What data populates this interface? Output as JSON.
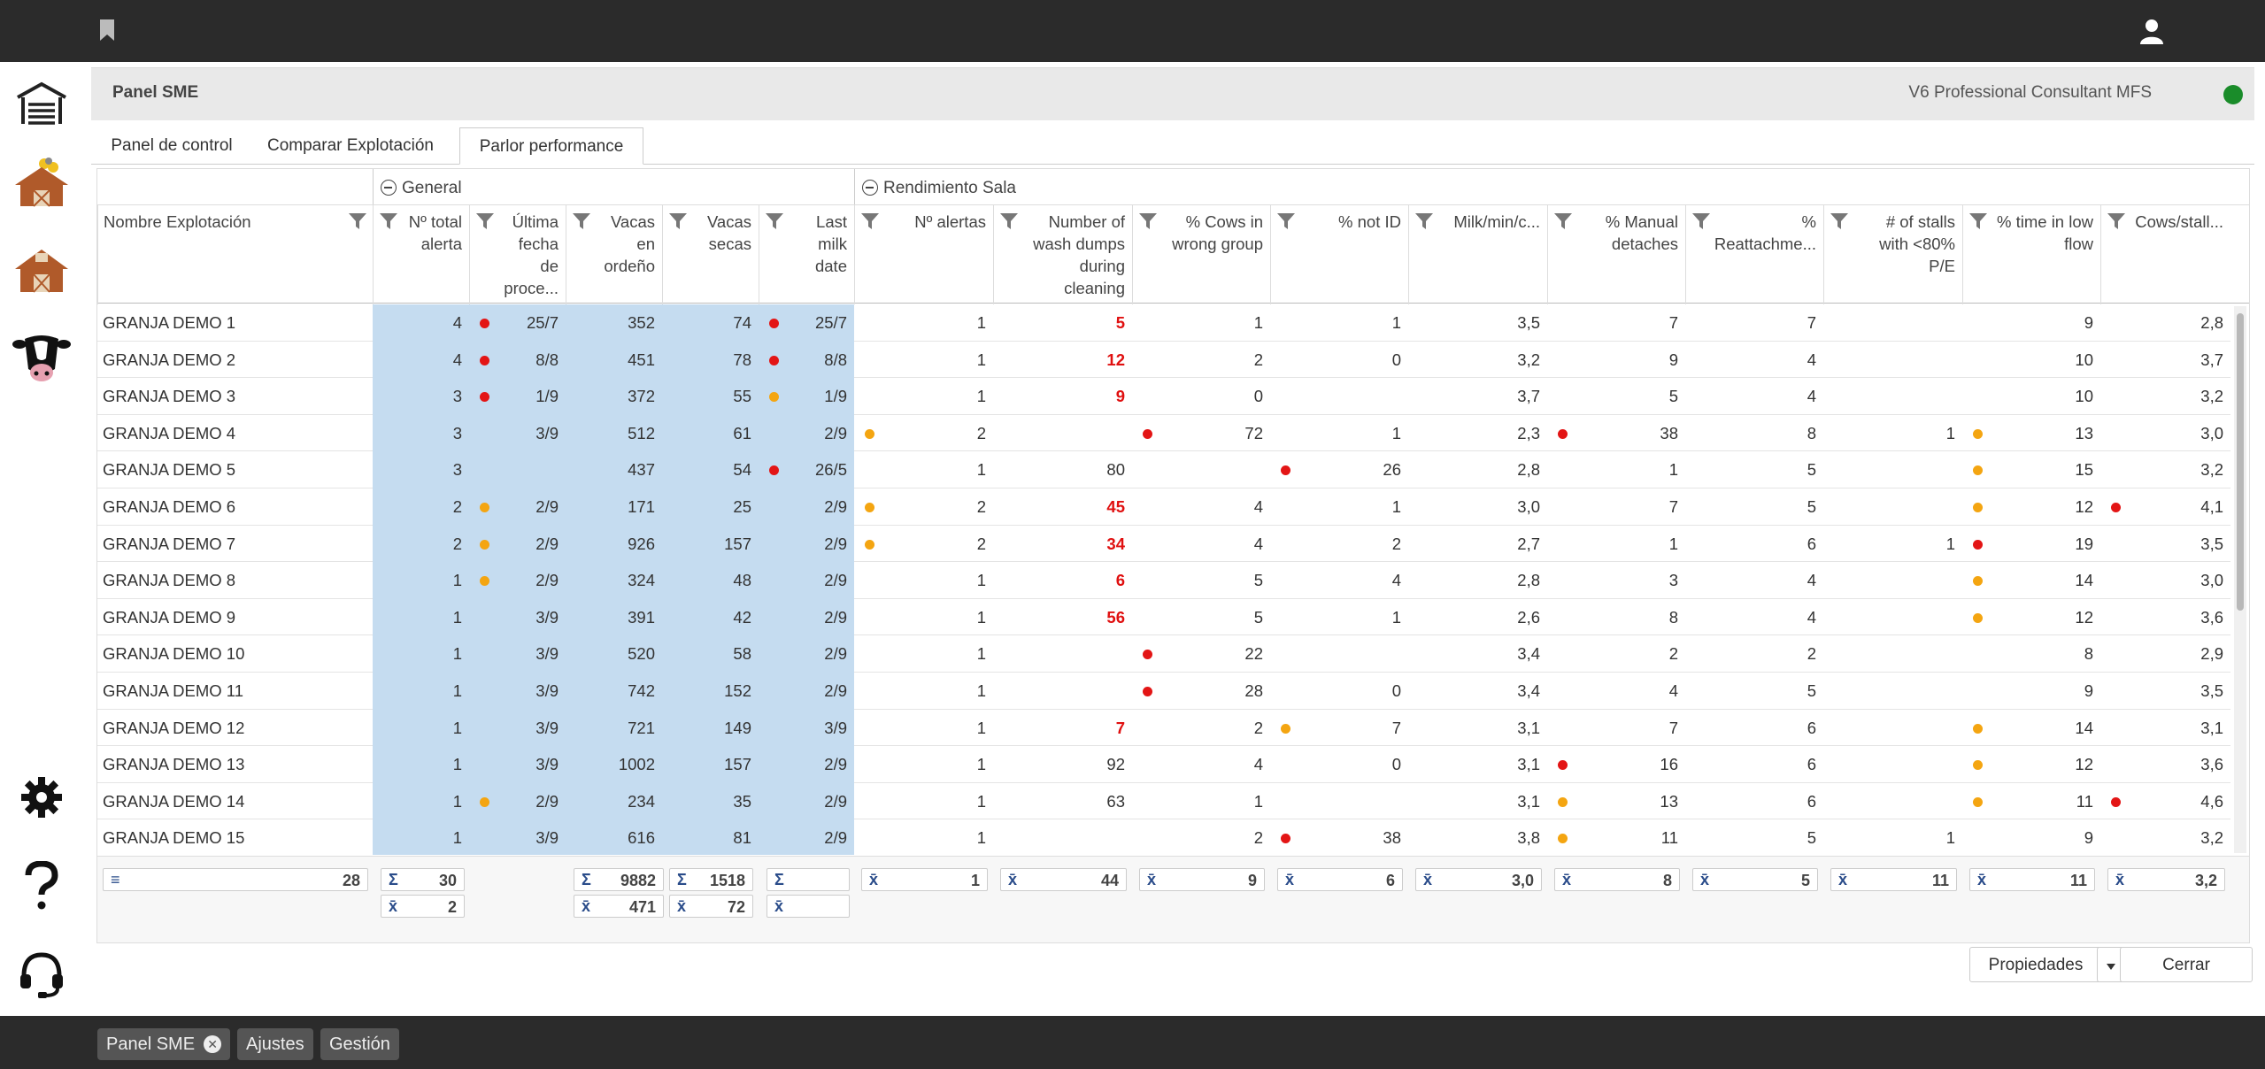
{
  "panel": {
    "title": "Panel SME",
    "version": "V6 Professional Consultant MFS",
    "status_color": "#1a8c2a"
  },
  "tabs": [
    "Panel de control",
    "Comparar Explotación",
    "Parlor performance"
  ],
  "groups": {
    "general": "General",
    "rendimiento": "Rendimiento Sala"
  },
  "headers": {
    "name": "Nombre Explotación",
    "total_alerts": [
      "Nº total",
      "alerta"
    ],
    "last_process": [
      "Última",
      "fecha",
      "de",
      "proce..."
    ],
    "milking_cows": [
      "Vacas",
      "en",
      "ordeño"
    ],
    "dry_cows": [
      "Vacas",
      "secas"
    ],
    "last_milk": [
      "Last",
      "milk",
      "date"
    ],
    "alerts": [
      "Nº alertas"
    ],
    "wash_dumps": [
      "Number of",
      "wash dumps",
      "during",
      "cleaning"
    ],
    "wrong_group": [
      "% Cows in",
      "wrong group"
    ],
    "not_id": [
      "% not ID"
    ],
    "milk_min": [
      "Milk/min/c..."
    ],
    "manual_detaches": [
      "% Manual",
      "detaches"
    ],
    "reattach": [
      "%",
      "Reattachme..."
    ],
    "stalls": [
      "# of stalls",
      "with <80%",
      "P/E"
    ],
    "low_flow": [
      "% time in low",
      "flow"
    ],
    "cows_stall": [
      "Cows/stall..."
    ]
  },
  "rows": [
    {
      "name": "GRANJA DEMO 1",
      "c": [
        "4",
        "25/7",
        "352",
        "74",
        "25/7",
        "1",
        "5",
        "1",
        "1",
        "3,5",
        "7",
        "7",
        "",
        "9",
        "2,8"
      ],
      "d": [
        "",
        "r",
        "",
        "",
        "r",
        "",
        "",
        "",
        "",
        "",
        "",
        "",
        "",
        "",
        ""
      ]
    },
    {
      "name": "GRANJA DEMO 2",
      "c": [
        "4",
        "8/8",
        "451",
        "78",
        "8/8",
        "1",
        "12",
        "2",
        "0",
        "3,2",
        "9",
        "4",
        "",
        "10",
        "3,7"
      ],
      "d": [
        "",
        "r",
        "",
        "",
        "r",
        "",
        "",
        "",
        "",
        "",
        "",
        "",
        "",
        "",
        ""
      ]
    },
    {
      "name": "GRANJA DEMO 3",
      "c": [
        "3",
        "1/9",
        "372",
        "55",
        "1/9",
        "1",
        "9",
        "0",
        "",
        "3,7",
        "5",
        "4",
        "",
        "10",
        "3,2"
      ],
      "d": [
        "",
        "r",
        "",
        "",
        "o",
        "",
        "",
        "",
        "",
        "",
        "",
        "",
        "",
        "",
        ""
      ]
    },
    {
      "name": "GRANJA DEMO 4",
      "c": [
        "3",
        "3/9",
        "512",
        "61",
        "2/9",
        "2",
        "",
        "72",
        "1",
        "2,3",
        "38",
        "8",
        "1",
        "13",
        "3,0"
      ],
      "d": [
        "",
        "",
        "",
        "",
        "",
        "o",
        "",
        "r",
        "",
        "",
        "r",
        "",
        "",
        "o",
        ""
      ]
    },
    {
      "name": "GRANJA DEMO 5",
      "c": [
        "3",
        "",
        "437",
        "54",
        "26/5",
        "1",
        "80",
        "",
        "26",
        "2,8",
        "1",
        "5",
        "",
        "15",
        "3,2"
      ],
      "d": [
        "",
        "",
        "",
        "",
        "r",
        "",
        "",
        "",
        "r",
        "",
        "",
        "",
        "",
        "o",
        ""
      ]
    },
    {
      "name": "GRANJA DEMO 6",
      "c": [
        "2",
        "2/9",
        "171",
        "25",
        "2/9",
        "2",
        "45",
        "4",
        "1",
        "3,0",
        "7",
        "5",
        "",
        "12",
        "4,1"
      ],
      "d": [
        "",
        "o",
        "",
        "",
        "",
        "o",
        "",
        "",
        "",
        "",
        "",
        "",
        "",
        "o",
        "r"
      ]
    },
    {
      "name": "GRANJA DEMO 7",
      "c": [
        "2",
        "2/9",
        "926",
        "157",
        "2/9",
        "2",
        "34",
        "4",
        "2",
        "2,7",
        "1",
        "6",
        "1",
        "19",
        "3,5"
      ],
      "d": [
        "",
        "o",
        "",
        "",
        "",
        "o",
        "",
        "",
        "",
        "",
        "",
        "",
        "",
        "r",
        ""
      ]
    },
    {
      "name": "GRANJA DEMO 8",
      "c": [
        "1",
        "2/9",
        "324",
        "48",
        "2/9",
        "1",
        "6",
        "5",
        "4",
        "2,8",
        "3",
        "4",
        "",
        "14",
        "3,0"
      ],
      "d": [
        "",
        "o",
        "",
        "",
        "",
        "",
        "",
        "",
        "",
        "",
        "",
        "",
        "",
        "o",
        ""
      ]
    },
    {
      "name": "GRANJA DEMO 9",
      "c": [
        "1",
        "3/9",
        "391",
        "42",
        "2/9",
        "1",
        "56",
        "5",
        "1",
        "2,6",
        "8",
        "4",
        "",
        "12",
        "3,6"
      ],
      "d": [
        "",
        "",
        "",
        "",
        "",
        "",
        "",
        "",
        "",
        "",
        "",
        "",
        "",
        "o",
        ""
      ]
    },
    {
      "name": "GRANJA DEMO 10",
      "c": [
        "1",
        "3/9",
        "520",
        "58",
        "2/9",
        "1",
        "",
        "22",
        "",
        "3,4",
        "2",
        "2",
        "",
        "8",
        "2,9"
      ],
      "d": [
        "",
        "",
        "",
        "",
        "",
        "",
        "",
        "r",
        "",
        "",
        "",
        "",
        "",
        "",
        ""
      ]
    },
    {
      "name": "GRANJA DEMO 11",
      "c": [
        "1",
        "3/9",
        "742",
        "152",
        "2/9",
        "1",
        "",
        "28",
        "0",
        "3,4",
        "4",
        "5",
        "",
        "9",
        "3,5"
      ],
      "d": [
        "",
        "",
        "",
        "",
        "",
        "",
        "",
        "r",
        "",
        "",
        "",
        "",
        "",
        "",
        ""
      ]
    },
    {
      "name": "GRANJA DEMO 12",
      "c": [
        "1",
        "3/9",
        "721",
        "149",
        "3/9",
        "1",
        "7",
        "2",
        "7",
        "3,1",
        "7",
        "6",
        "",
        "14",
        "3,1"
      ],
      "d": [
        "",
        "",
        "",
        "",
        "",
        "",
        "",
        "",
        "o",
        "",
        "",
        "",
        "",
        "o",
        ""
      ]
    },
    {
      "name": "GRANJA DEMO 13",
      "c": [
        "1",
        "3/9",
        "1002",
        "157",
        "2/9",
        "1",
        "92",
        "4",
        "0",
        "3,1",
        "16",
        "6",
        "",
        "12",
        "3,6"
      ],
      "d": [
        "",
        "",
        "",
        "",
        "",
        "",
        "",
        "",
        "",
        "",
        "r",
        "",
        "",
        "o",
        ""
      ]
    },
    {
      "name": "GRANJA DEMO 14",
      "c": [
        "1",
        "2/9",
        "234",
        "35",
        "2/9",
        "1",
        "63",
        "1",
        "",
        "3,1",
        "13",
        "6",
        "",
        "11",
        "4,6"
      ],
      "d": [
        "",
        "o",
        "",
        "",
        "",
        "",
        "",
        "",
        "",
        "",
        "o",
        "",
        "",
        "o",
        "r"
      ]
    },
    {
      "name": "GRANJA DEMO 15",
      "c": [
        "1",
        "3/9",
        "616",
        "81",
        "2/9",
        "1",
        "",
        "2",
        "38",
        "3,8",
        "11",
        "5",
        "1",
        "9",
        "3,2"
      ],
      "d": [
        "",
        "",
        "",
        "",
        "",
        "",
        "",
        "",
        "r",
        "",
        "o",
        "",
        "",
        "",
        ""
      ]
    }
  ],
  "red_text_rows_wash": [
    0,
    1,
    2,
    5,
    6,
    7,
    8,
    11
  ],
  "footer": {
    "count": "28",
    "sum_total_alerts": "30",
    "avg_total_alerts": "2",
    "sum_milking": "9882",
    "avg_milking": "471",
    "sum_dry": "1518",
    "avg_dry": "72",
    "sum_last_milk": "",
    "avg_last_milk": "",
    "avgs": [
      "1",
      "44",
      "9",
      "6",
      "3,0",
      "8",
      "5",
      "11",
      "11",
      "3,2"
    ]
  },
  "symbols": {
    "count": "≡",
    "sum": "Σ",
    "avg": "x̄"
  },
  "buttons": {
    "properties": "Propiedades",
    "close": "Cerrar"
  },
  "bottom_tabs": [
    "Panel SME",
    "Ajustes",
    "Gestión"
  ],
  "colors": {
    "accent_blue": "#c5dcf0",
    "alert_red": "#e31515",
    "alert_orange": "#f4a511"
  }
}
